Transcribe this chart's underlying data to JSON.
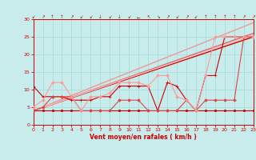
{
  "xlabel": "Vent moyen/en rafales ( km/h )",
  "xlim": [
    0,
    23
  ],
  "ylim": [
    0,
    30
  ],
  "xticks": [
    0,
    1,
    2,
    3,
    4,
    5,
    6,
    7,
    8,
    9,
    10,
    11,
    12,
    13,
    14,
    15,
    16,
    17,
    18,
    19,
    20,
    21,
    22,
    23
  ],
  "yticks": [
    0,
    5,
    10,
    15,
    20,
    25,
    30
  ],
  "bg_color": "#c8ecec",
  "grid_color": "#aadddd",
  "wind_symbols": [
    "↙",
    "↗",
    "↑",
    "↑",
    "↗",
    "↙",
    "↙",
    "↓",
    "↙",
    "↓",
    "↙",
    "←",
    "↖",
    "↘",
    "↗",
    "↙",
    "↗",
    "↙",
    "↑",
    "↑",
    "↑",
    "↑",
    "↗",
    "↗"
  ],
  "trend_lines": [
    {
      "x": [
        0,
        23
      ],
      "y": [
        4,
        25
      ],
      "color": "#cc0000",
      "lw": 1.0
    },
    {
      "x": [
        0,
        23
      ],
      "y": [
        4,
        26
      ],
      "color": "#dd6666",
      "lw": 1.0
    },
    {
      "x": [
        0,
        23
      ],
      "y": [
        4,
        29
      ],
      "color": "#ee9999",
      "lw": 1.0
    },
    {
      "x": [
        0,
        23
      ],
      "y": [
        4,
        25.5
      ],
      "color": "#ffbbbb",
      "lw": 1.0
    }
  ],
  "data_lines": [
    {
      "x": [
        0,
        1,
        2,
        3,
        4,
        5,
        6,
        7,
        8,
        9,
        10,
        11,
        12,
        13,
        14,
        15,
        16,
        17,
        18,
        19,
        20,
        21,
        22,
        23
      ],
      "y": [
        4,
        4,
        4,
        4,
        4,
        4,
        4,
        4,
        4,
        4,
        4,
        4,
        4,
        4,
        4,
        4,
        4,
        4,
        4,
        4,
        4,
        4,
        4,
        4
      ],
      "color": "#cc0000",
      "lw": 0.8,
      "marker": "s",
      "ms": 1.8
    },
    {
      "x": [
        0,
        1,
        2,
        3,
        4,
        5,
        6,
        7,
        8,
        9,
        10,
        11,
        12,
        13,
        14,
        15,
        16,
        17,
        18,
        19,
        20,
        21,
        22,
        23
      ],
      "y": [
        11,
        8,
        8,
        8,
        7,
        7,
        7,
        8,
        8,
        11,
        11,
        11,
        11,
        4,
        12,
        11,
        7,
        4,
        14,
        14,
        25,
        25,
        25,
        25
      ],
      "color": "#cc0000",
      "lw": 0.8,
      "marker": "+",
      "ms": 3.0
    },
    {
      "x": [
        0,
        1,
        2,
        3,
        4,
        5,
        6,
        7,
        8,
        9,
        10,
        11,
        12,
        13,
        14,
        15,
        16,
        17,
        18,
        19,
        20,
        21,
        22,
        23
      ],
      "y": [
        4,
        5,
        8,
        8,
        8,
        4,
        4,
        4,
        4,
        7,
        7,
        7,
        4,
        4,
        4,
        4,
        7,
        4,
        7,
        7,
        7,
        7,
        25,
        25
      ],
      "color": "#dd4444",
      "lw": 0.8,
      "marker": "D",
      "ms": 1.8
    },
    {
      "x": [
        0,
        1,
        2,
        3,
        4,
        5,
        6,
        7,
        8,
        9,
        10,
        11,
        12,
        13,
        14,
        15,
        16,
        17,
        18,
        19,
        20,
        21,
        22,
        23
      ],
      "y": [
        5,
        7,
        12,
        12,
        8,
        4,
        8,
        8,
        9,
        12,
        12,
        12,
        11,
        14,
        14,
        8,
        7,
        4,
        14,
        25,
        25,
        25,
        25,
        25
      ],
      "color": "#ff9999",
      "lw": 0.8,
      "marker": "D",
      "ms": 1.8
    }
  ]
}
